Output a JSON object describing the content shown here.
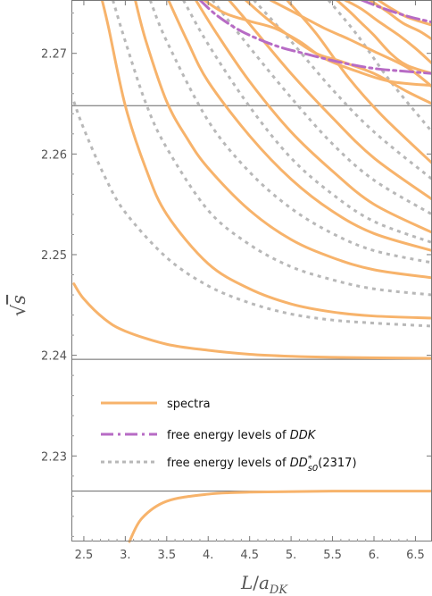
{
  "chart_data": {
    "type": "line",
    "xlabel": "L/aDK",
    "ylabel": "√s",
    "xlim": [
      2.35,
      6.7
    ],
    "ylim": [
      2.2215,
      2.2753
    ],
    "x_ticks": [
      2.5,
      3.0,
      3.5,
      4.0,
      4.5,
      5.0,
      5.5,
      6.0,
      6.5
    ],
    "x_tick_labels": [
      "2.5",
      "3.",
      "3.5",
      "4.",
      "4.5",
      "5.",
      "5.5",
      "6.",
      "6.5"
    ],
    "y_ticks": [
      2.23,
      2.24,
      2.25,
      2.26,
      2.27
    ],
    "y_tick_labels": [
      "2.23",
      "2.24",
      "2.25",
      "2.26",
      "2.27"
    ],
    "thresholds": [
      2.2265,
      2.2396,
      2.2648
    ],
    "legend": {
      "placement": "lower-center",
      "items": [
        {
          "label": "spectra",
          "style": "solid",
          "color": "#f7b36b"
        },
        {
          "label_prefix": "free energy levels of ",
          "label_math": "DDK",
          "label_suffix": "",
          "style": "dashdot",
          "color": "#b76bc5"
        },
        {
          "label_prefix": "free energy levels of ",
          "label_math": "DD*s0",
          "label_suffix": "(2317)",
          "style": "dotted",
          "color": "#b8b8b8"
        }
      ]
    },
    "series": [
      {
        "style": "solid",
        "color": "#f7b36b",
        "points": [
          [
            3.05,
            2.2215
          ],
          [
            3.2,
            2.2238
          ],
          [
            3.5,
            2.2255
          ],
          [
            4.0,
            2.2262
          ],
          [
            4.5,
            2.2264
          ],
          [
            5.5,
            2.2265
          ],
          [
            6.7,
            2.2265
          ]
        ]
      },
      {
        "style": "solid",
        "color": "#f7b36b",
        "points": [
          [
            2.38,
            2.2471
          ],
          [
            2.5,
            2.2456
          ],
          [
            2.75,
            2.2436
          ],
          [
            3.0,
            2.2424
          ],
          [
            3.5,
            2.2411
          ],
          [
            4.0,
            2.2405
          ],
          [
            4.5,
            2.2401
          ],
          [
            5.0,
            2.2399
          ],
          [
            5.5,
            2.2398
          ],
          [
            6.7,
            2.2397
          ]
        ]
      },
      {
        "style": "dotted",
        "color": "#b8b8b8",
        "points": [
          [
            2.38,
            2.2652
          ],
          [
            2.5,
            2.2625
          ],
          [
            2.75,
            2.2578
          ],
          [
            3.0,
            2.2542
          ],
          [
            3.5,
            2.2497
          ],
          [
            4.0,
            2.2469
          ],
          [
            4.5,
            2.2452
          ],
          [
            5.0,
            2.2441
          ],
          [
            5.5,
            2.2435
          ],
          [
            6.0,
            2.2432
          ],
          [
            6.7,
            2.2429
          ]
        ]
      },
      {
        "style": "solid",
        "color": "#f7b36b",
        "points": [
          [
            2.72,
            2.2753
          ],
          [
            2.8,
            2.2725
          ],
          [
            3.0,
            2.2648
          ],
          [
            3.25,
            2.2585
          ],
          [
            3.5,
            2.254
          ],
          [
            4.0,
            2.2491
          ],
          [
            4.5,
            2.2466
          ],
          [
            5.0,
            2.2451
          ],
          [
            5.5,
            2.2443
          ],
          [
            6.0,
            2.2439
          ],
          [
            6.7,
            2.2437
          ]
        ]
      },
      {
        "style": "dotted",
        "color": "#b8b8b8",
        "points": [
          [
            2.85,
            2.2753
          ],
          [
            3.0,
            2.2712
          ],
          [
            3.25,
            2.265
          ],
          [
            3.5,
            2.2606
          ],
          [
            4.0,
            2.2544
          ],
          [
            4.5,
            2.251
          ],
          [
            5.0,
            2.2488
          ],
          [
            5.5,
            2.2475
          ],
          [
            6.0,
            2.2466
          ],
          [
            6.7,
            2.246
          ]
        ]
      },
      {
        "style": "solid",
        "color": "#f7b36b",
        "points": [
          [
            3.12,
            2.2753
          ],
          [
            3.25,
            2.2712
          ],
          [
            3.5,
            2.2652
          ],
          [
            3.75,
            2.2615
          ],
          [
            4.0,
            2.2586
          ],
          [
            4.5,
            2.2544
          ],
          [
            5.0,
            2.2515
          ],
          [
            5.5,
            2.2497
          ],
          [
            6.0,
            2.2485
          ],
          [
            6.7,
            2.2477
          ]
        ]
      },
      {
        "style": "dotted",
        "color": "#b8b8b8",
        "points": [
          [
            3.3,
            2.2753
          ],
          [
            3.5,
            2.2712
          ],
          [
            4.0,
            2.2633
          ],
          [
            4.5,
            2.2582
          ],
          [
            5.0,
            2.2546
          ],
          [
            5.5,
            2.2521
          ],
          [
            6.0,
            2.2504
          ],
          [
            6.7,
            2.2492
          ]
        ]
      },
      {
        "style": "solid",
        "color": "#f7b36b",
        "points": [
          [
            3.52,
            2.2753
          ],
          [
            3.75,
            2.2712
          ],
          [
            4.0,
            2.2672
          ],
          [
            4.5,
            2.2618
          ],
          [
            5.0,
            2.2575
          ],
          [
            5.5,
            2.2543
          ],
          [
            6.0,
            2.2521
          ],
          [
            6.7,
            2.2504
          ]
        ]
      },
      {
        "style": "dotted",
        "color": "#b8b8b8",
        "points": [
          [
            3.7,
            2.2753
          ],
          [
            4.0,
            2.2709
          ],
          [
            4.5,
            2.2647
          ],
          [
            5.0,
            2.2596
          ],
          [
            5.5,
            2.256
          ],
          [
            6.0,
            2.2533
          ],
          [
            6.7,
            2.2512
          ]
        ]
      },
      {
        "style": "solid",
        "color": "#f7b36b",
        "points": [
          [
            3.85,
            2.2753
          ],
          [
            4.1,
            2.272
          ],
          [
            4.5,
            2.2672
          ],
          [
            5.0,
            2.2622
          ],
          [
            5.5,
            2.2583
          ],
          [
            6.0,
            2.255
          ],
          [
            6.7,
            2.2522
          ]
        ]
      },
      {
        "style": "dotted",
        "color": "#b8b8b8",
        "points": [
          [
            4.05,
            2.2753
          ],
          [
            4.5,
            2.2706
          ],
          [
            5.0,
            2.2656
          ],
          [
            5.5,
            2.261
          ],
          [
            6.0,
            2.2574
          ],
          [
            6.7,
            2.254
          ]
        ]
      },
      {
        "style": "solid",
        "color": "#f7b36b",
        "points": [
          [
            4.25,
            2.2753
          ],
          [
            4.5,
            2.2729
          ],
          [
            5.0,
            2.268
          ],
          [
            5.5,
            2.2636
          ],
          [
            6.0,
            2.2596
          ],
          [
            6.7,
            2.2555
          ]
        ]
      },
      {
        "style": "dotted",
        "color": "#b8b8b8",
        "points": [
          [
            4.55,
            2.2753
          ],
          [
            5.0,
            2.2712
          ],
          [
            5.5,
            2.2664
          ],
          [
            6.0,
            2.2622
          ],
          [
            6.7,
            2.2575
          ]
        ]
      },
      {
        "style": "solid",
        "color": "#f7b36b",
        "points": [
          [
            4.95,
            2.2753
          ],
          [
            5.3,
            2.272
          ],
          [
            5.7,
            2.2675
          ],
          [
            6.1,
            2.2638
          ],
          [
            6.7,
            2.2591
          ]
        ]
      },
      {
        "style": "dotted",
        "color": "#b8b8b8",
        "points": [
          [
            5.45,
            2.2753
          ],
          [
            5.8,
            2.2718
          ],
          [
            6.2,
            2.2672
          ],
          [
            6.7,
            2.2622
          ]
        ]
      },
      {
        "style": "solid",
        "color": "#f7b36b",
        "points": [
          [
            4.45,
            2.2753
          ],
          [
            4.7,
            2.2735
          ],
          [
            5.0,
            2.2716
          ],
          [
            5.3,
            2.27
          ],
          [
            5.6,
            2.2692
          ],
          [
            6.0,
            2.268
          ],
          [
            6.4,
            2.2662
          ],
          [
            6.7,
            2.265
          ]
        ]
      },
      {
        "style": "solid",
        "color": "#f7b36b",
        "points": [
          [
            4.75,
            2.2753
          ],
          [
            5.1,
            2.2738
          ],
          [
            5.4,
            2.2725
          ],
          [
            5.7,
            2.2714
          ],
          [
            6.0,
            2.2702
          ],
          [
            6.4,
            2.2686
          ],
          [
            6.7,
            2.2667
          ]
        ]
      },
      {
        "style": "solid",
        "color": "#f7b36b",
        "points": [
          [
            3.95,
            2.2753
          ],
          [
            4.2,
            2.274
          ],
          [
            4.5,
            2.2732
          ],
          [
            4.8,
            2.2725
          ],
          [
            5.1,
            2.2712
          ],
          [
            5.4,
            2.2695
          ],
          [
            5.8,
            2.2682
          ],
          [
            6.2,
            2.2672
          ],
          [
            6.7,
            2.2668
          ]
        ]
      },
      {
        "style": "solid",
        "color": "#f7b36b",
        "points": [
          [
            5.55,
            2.2753
          ],
          [
            5.7,
            2.2742
          ],
          [
            5.85,
            2.273
          ],
          [
            6.0,
            2.2718
          ],
          [
            6.2,
            2.27
          ],
          [
            6.4,
            2.2688
          ],
          [
            6.7,
            2.268
          ]
        ]
      },
      {
        "style": "solid",
        "color": "#f7b36b",
        "points": [
          [
            5.65,
            2.2753
          ],
          [
            5.85,
            2.2744
          ],
          [
            6.05,
            2.2732
          ],
          [
            6.3,
            2.2718
          ],
          [
            6.5,
            2.2705
          ],
          [
            6.7,
            2.269
          ]
        ]
      },
      {
        "style": "solid",
        "color": "#f7b36b",
        "points": [
          [
            5.95,
            2.2753
          ],
          [
            6.15,
            2.2742
          ],
          [
            6.35,
            2.273
          ],
          [
            6.55,
            2.2722
          ],
          [
            6.7,
            2.2714
          ]
        ]
      },
      {
        "style": "solid",
        "color": "#f7b36b",
        "points": [
          [
            6.05,
            2.2753
          ],
          [
            6.2,
            2.2745
          ],
          [
            6.4,
            2.2736
          ],
          [
            6.7,
            2.2728
          ]
        ]
      },
      {
        "style": "dashdot",
        "color": "#b76bc5",
        "points": [
          [
            3.9,
            2.2753
          ],
          [
            4.1,
            2.2738
          ],
          [
            4.4,
            2.2722
          ],
          [
            4.8,
            2.2708
          ],
          [
            5.2,
            2.2699
          ],
          [
            5.6,
            2.2691
          ],
          [
            6.0,
            2.2685
          ],
          [
            6.4,
            2.2682
          ],
          [
            6.7,
            2.268
          ]
        ]
      },
      {
        "style": "dashdot",
        "color": "#b76bc5",
        "points": [
          [
            5.85,
            2.2753
          ],
          [
            6.1,
            2.2745
          ],
          [
            6.4,
            2.2737
          ],
          [
            6.7,
            2.2731
          ]
        ]
      }
    ]
  }
}
